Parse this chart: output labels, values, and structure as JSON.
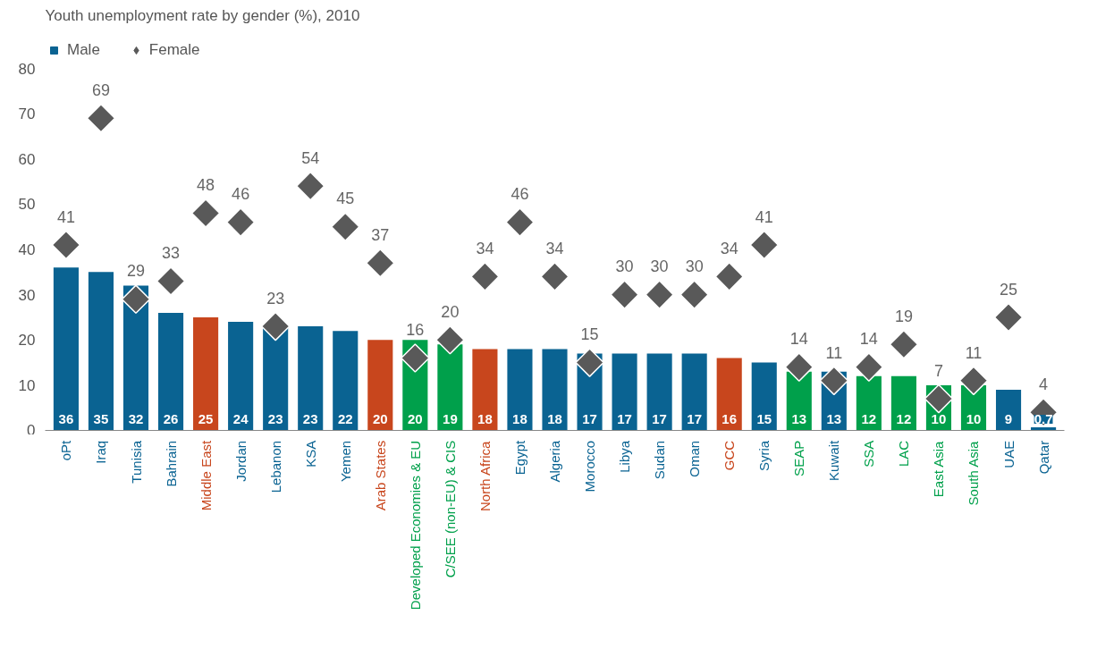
{
  "chart_data": {
    "type": "bar",
    "title": "Youth unemployment rate by gender (%), 2010",
    "categories": [
      "oPt",
      "Iraq",
      "Tunisia",
      "Bahrain",
      "Middle East",
      "Jordan",
      "Lebanon",
      "KSA",
      "Yemen",
      "Arab States",
      "Developed Economies & EU",
      "C/SEE (non-EU) & CIS",
      "North Africa",
      "Egypt",
      "Algeria",
      "Morocco",
      "Libya",
      "Sudan",
      "Oman",
      "GCC",
      "Syria",
      "SEAP",
      "Kuwait",
      "SSA",
      "LAC",
      "East Asia",
      "South Asia",
      "UAE",
      "Qatar"
    ],
    "series": [
      {
        "name": "Male",
        "color": "#0a6392",
        "colors": [
          "#0a6392",
          "#0a6392",
          "#0a6392",
          "#0a6392",
          "#c8461d",
          "#0a6392",
          "#0a6392",
          "#0a6392",
          "#0a6392",
          "#c8461d",
          "#00a04b",
          "#00a04b",
          "#c8461d",
          "#0a6392",
          "#0a6392",
          "#0a6392",
          "#0a6392",
          "#0a6392",
          "#0a6392",
          "#c8461d",
          "#0a6392",
          "#00a04b",
          "#0a6392",
          "#00a04b",
          "#00a04b",
          "#00a04b",
          "#00a04b",
          "#0a6392",
          "#0a6392"
        ],
        "values": [
          36,
          35,
          32,
          26,
          25,
          24,
          23,
          23,
          22,
          20,
          20,
          19,
          18,
          18,
          18,
          17,
          17,
          17,
          17,
          16,
          15,
          13,
          13,
          12,
          12,
          10,
          10,
          9,
          0.7
        ]
      },
      {
        "name": "Female",
        "type": "scatter",
        "color": "#595959",
        "marker": "diamond",
        "values": [
          41,
          69,
          29,
          33,
          48,
          46,
          23,
          54,
          45,
          37,
          16,
          20,
          34,
          46,
          34,
          15,
          30,
          30,
          30,
          34,
          41,
          14,
          11,
          14,
          19,
          7,
          11,
          25,
          4
        ]
      }
    ],
    "ylim": [
      0,
      80
    ],
    "yticks": [
      0,
      10,
      20,
      30,
      40,
      50,
      60,
      70,
      80
    ],
    "grid": false,
    "legend": "top left",
    "data_labels": true
  }
}
